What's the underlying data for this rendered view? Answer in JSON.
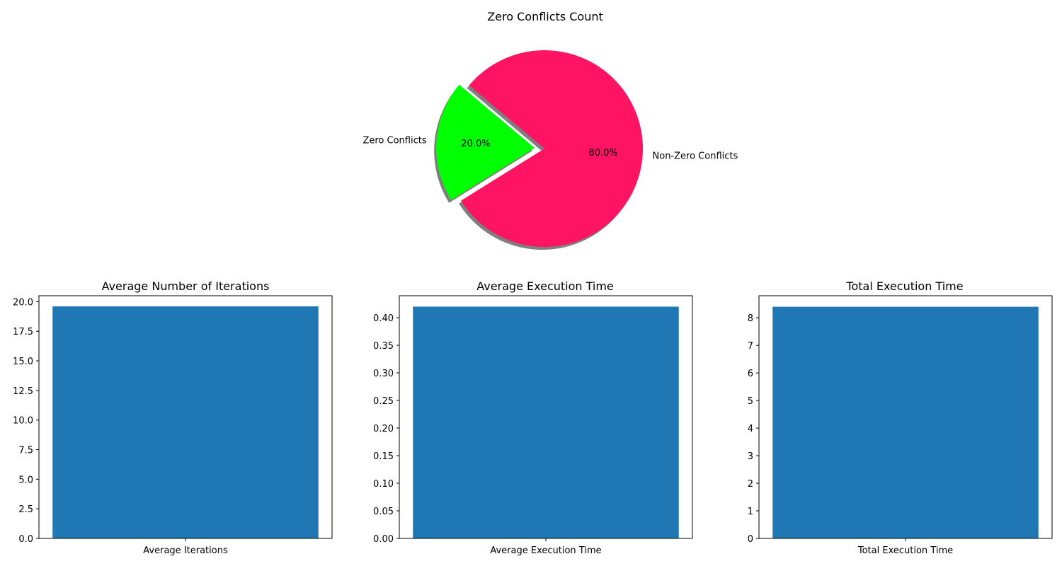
{
  "chart_data": [
    {
      "type": "pie",
      "title": "Zero Conflicts Count",
      "labels": [
        "Zero Conflicts",
        "Non-Zero Conflicts"
      ],
      "values": [
        20.0,
        80.0
      ],
      "percent_labels": [
        "20.0%",
        "80.0%"
      ],
      "colors": [
        "#00ff00",
        "#ff1464"
      ],
      "explode": [
        0.1,
        0
      ],
      "shadow": true,
      "start_angle_deg": 140
    },
    {
      "type": "bar",
      "title": "Average Number of Iterations",
      "categories": [
        "Average Iterations"
      ],
      "values": [
        19.6
      ],
      "ylim": [
        0,
        20.5
      ],
      "yticks": [
        0.0,
        2.5,
        5.0,
        7.5,
        10.0,
        12.5,
        15.0,
        17.5,
        20.0
      ],
      "ytick_labels": [
        "0.0",
        "2.5",
        "5.0",
        "7.5",
        "10.0",
        "12.5",
        "15.0",
        "17.5",
        "20.0"
      ],
      "color": "#1f77b4"
    },
    {
      "type": "bar",
      "title": "Average Execution Time",
      "categories": [
        "Average Execution Time"
      ],
      "values": [
        0.42
      ],
      "ylim": [
        0,
        0.4398
      ],
      "yticks": [
        0.0,
        0.05,
        0.1,
        0.15,
        0.2,
        0.25,
        0.3,
        0.35,
        0.4
      ],
      "ytick_labels": [
        "0.00",
        "0.05",
        "0.10",
        "0.15",
        "0.20",
        "0.25",
        "0.30",
        "0.35",
        "0.40"
      ],
      "color": "#1f77b4"
    },
    {
      "type": "bar",
      "title": "Total Execution Time",
      "categories": [
        "Total Execution Time"
      ],
      "values": [
        8.4
      ],
      "ylim": [
        0,
        8.8
      ],
      "yticks": [
        0,
        1,
        2,
        3,
        4,
        5,
        6,
        7,
        8
      ],
      "ytick_labels": [
        "0",
        "1",
        "2",
        "3",
        "4",
        "5",
        "6",
        "7",
        "8"
      ],
      "color": "#1f77b4"
    }
  ]
}
